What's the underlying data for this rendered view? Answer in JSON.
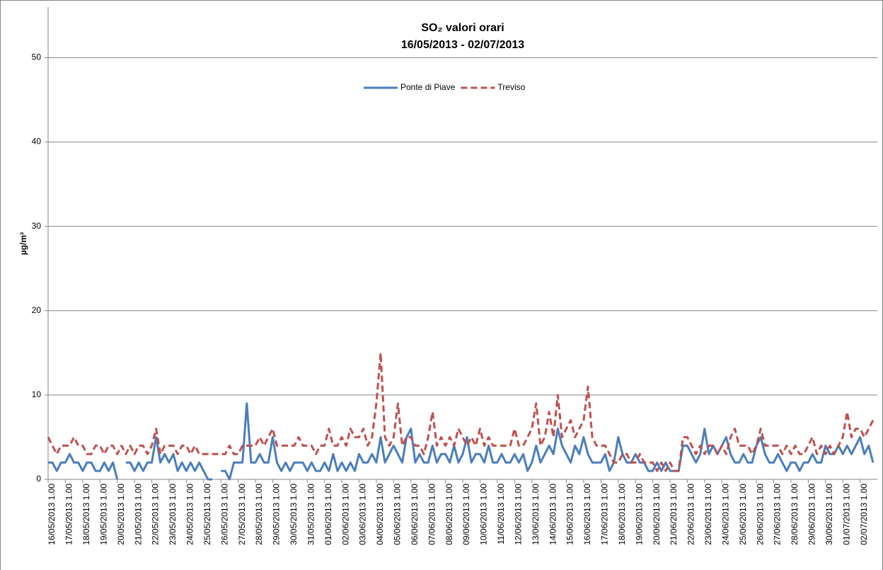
{
  "chart_data": {
    "type": "line",
    "title": "SO₂ valori orari",
    "subtitle": "16/05/2013 - 02/07/2013",
    "y_label": "µg/m³",
    "ylim": [
      0,
      56
    ],
    "yticks": [
      0,
      10,
      20,
      30,
      40,
      50
    ],
    "grid": true,
    "legend": "top",
    "categories": [
      "16/05/2013 1.00",
      null,
      null,
      null,
      "17/05/2013 1.00",
      null,
      null,
      null,
      "18/05/2013 1.00",
      null,
      null,
      null,
      "19/05/2013 1.00",
      null,
      null,
      null,
      "20/05/2013 1.00",
      null,
      null,
      null,
      "21/05/2013 1.00",
      null,
      null,
      null,
      "22/05/2013 1.00",
      null,
      null,
      null,
      "23/05/2013 1.00",
      null,
      null,
      null,
      "24/05/2013 1.00",
      null,
      null,
      null,
      "25/05/2013 1.00",
      null,
      null,
      null,
      "26/05/2013 1.00",
      null,
      null,
      null,
      "27/05/2013 1.00",
      null,
      null,
      null,
      "28/05/2013 1.00",
      null,
      null,
      null,
      "29/05/2013 1.00",
      null,
      null,
      null,
      "30/05/2013 1.00",
      null,
      null,
      null,
      "31/05/2013 1.00",
      null,
      null,
      null,
      "01/06/2013 1.00",
      null,
      null,
      null,
      "02/06/2013 1.00",
      null,
      null,
      null,
      "03/06/2013 1.00",
      null,
      null,
      null,
      "04/06/2013 1.00",
      null,
      null,
      null,
      "05/06/2013 1.00",
      null,
      null,
      null,
      "06/06/2013 1.00",
      null,
      null,
      null,
      "07/06/2013 1.00",
      null,
      null,
      null,
      "08/06/2013 1.00",
      null,
      null,
      null,
      "09/06/2013 1.00",
      null,
      null,
      null,
      "10/06/2013 1.00",
      null,
      null,
      null,
      "11/06/2013 1.00",
      null,
      null,
      null,
      "12/06/2013 1.00",
      null,
      null,
      null,
      "13/06/2013 1.00",
      null,
      null,
      null,
      "14/06/2013 1.00",
      null,
      null,
      null,
      "15/06/2013 1.00",
      null,
      null,
      null,
      "16/06/2013 1.00",
      null,
      null,
      null,
      "17/06/2013 1.00",
      null,
      null,
      null,
      "18/06/2013 1.00",
      null,
      null,
      null,
      "19/06/2013 1.00",
      null,
      null,
      null,
      "20/06/2013 1.00",
      null,
      null,
      null,
      "21/06/2013 1.00",
      null,
      null,
      null,
      "22/06/2013 1.00",
      null,
      null,
      null,
      "23/06/2013 1.00",
      null,
      null,
      null,
      "24/06/2013 1.00",
      null,
      null,
      null,
      "25/06/2013 1.00",
      null,
      null,
      null,
      "26/06/2013 1.00",
      null,
      null,
      null,
      "27/06/2013 1.00",
      null,
      null,
      null,
      "28/06/2013 1.00",
      null,
      null,
      null,
      "29/06/2013 1.00",
      null,
      null,
      null,
      "30/06/2013 1.00",
      null,
      null,
      null,
      "01/07/2013 1.00",
      null,
      null,
      null,
      "02/07/2013 1.00",
      null,
      null,
      null
    ],
    "series": [
      {
        "name": "Ponte di Piave",
        "color": "#4a7ebb",
        "dash": false,
        "values": [
          2,
          2,
          1,
          2,
          2,
          3,
          2,
          2,
          1,
          2,
          2,
          1,
          1,
          2,
          1,
          2,
          0,
          null,
          2,
          2,
          1,
          2,
          1,
          2,
          2,
          5,
          2,
          3,
          2,
          3,
          1,
          2,
          1,
          2,
          1,
          2,
          1,
          0,
          0,
          null,
          1,
          1,
          0,
          2,
          2,
          2,
          9,
          2,
          2,
          3,
          2,
          2,
          5,
          2,
          1,
          2,
          1,
          2,
          2,
          2,
          1,
          2,
          1,
          1,
          2,
          1,
          3,
          1,
          2,
          1,
          2,
          1,
          3,
          2,
          2,
          3,
          2,
          5,
          2,
          3,
          4,
          3,
          2,
          5,
          6,
          2,
          3,
          2,
          2,
          4,
          2,
          3,
          3,
          2,
          4,
          2,
          3,
          5,
          2,
          3,
          3,
          2,
          4,
          2,
          2,
          3,
          2,
          2,
          3,
          2,
          3,
          1,
          2,
          4,
          2,
          3,
          4,
          3,
          6,
          4,
          3,
          2,
          4,
          3,
          5,
          3,
          2,
          2,
          2,
          3,
          1,
          2,
          5,
          3,
          2,
          2,
          3,
          2,
          2,
          1,
          1,
          2,
          1,
          2,
          1,
          1,
          1,
          4,
          4,
          3,
          2,
          3,
          6,
          3,
          4,
          3,
          4,
          5,
          3,
          2,
          2,
          3,
          2,
          2,
          4,
          5,
          3,
          2,
          2,
          3,
          2,
          1,
          2,
          2,
          1,
          2,
          2,
          3,
          2,
          2,
          4,
          3,
          3,
          4,
          3,
          4,
          3,
          4,
          5,
          3,
          4,
          2
        ]
      },
      {
        "name": "Treviso",
        "color": "#c0504d",
        "dash": true,
        "values": [
          5,
          4,
          3,
          4,
          4,
          4,
          5,
          4,
          4,
          3,
          3,
          4,
          4,
          3,
          4,
          4,
          3,
          4,
          3,
          4,
          3,
          4,
          4,
          3,
          4,
          6,
          3,
          4,
          4,
          4,
          3,
          4,
          4,
          3,
          4,
          3,
          3,
          3,
          3,
          3,
          3,
          3,
          4,
          3,
          3,
          4,
          4,
          4,
          4,
          5,
          4,
          5,
          6,
          4,
          4,
          4,
          4,
          4,
          5,
          4,
          4,
          4,
          3,
          4,
          4,
          6,
          4,
          4,
          5,
          4,
          6,
          5,
          5,
          6,
          4,
          5,
          9,
          15,
          5,
          4,
          5,
          9,
          4,
          5,
          5,
          4,
          4,
          3,
          5,
          8,
          4,
          5,
          4,
          5,
          4,
          6,
          5,
          4,
          5,
          4,
          6,
          4,
          5,
          4,
          4,
          4,
          4,
          4,
          6,
          4,
          4,
          5,
          6,
          9,
          4,
          5,
          8,
          5,
          10,
          5,
          6,
          7,
          5,
          6,
          7,
          11,
          5,
          4,
          4,
          4,
          3,
          2,
          2,
          3,
          3,
          2,
          2,
          3,
          2,
          2,
          2,
          1,
          2,
          1,
          2,
          1,
          1,
          5,
          5,
          4,
          3,
          4,
          3,
          4,
          4,
          3,
          4,
          3,
          5,
          6,
          4,
          4,
          4,
          3,
          4,
          6,
          4,
          4,
          4,
          4,
          3,
          4,
          3,
          4,
          3,
          3,
          4,
          5,
          3,
          4,
          3,
          4,
          3,
          4,
          5,
          8,
          5,
          6,
          6,
          5,
          6,
          7
        ]
      }
    ]
  }
}
